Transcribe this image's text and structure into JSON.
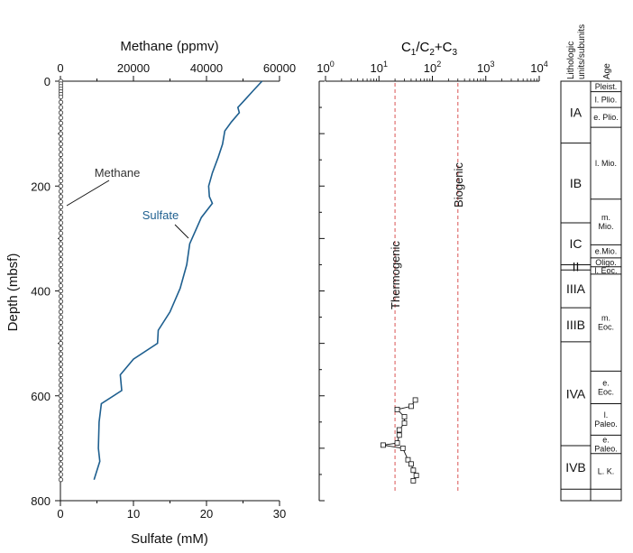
{
  "colors": {
    "sulfate": "#1e5f8f",
    "methane": "#333333",
    "thermogenic_line": "#e07070",
    "biogenic_line": "#e07070",
    "axis": "#111111"
  },
  "chart_data": [
    {
      "type": "line",
      "title": "",
      "ylabel": "Depth (mbsf)",
      "ylim": [
        0,
        800
      ],
      "y_ticks": [
        "0",
        "200",
        "400",
        "600",
        "800"
      ],
      "top_axis": {
        "label": "Methane (ppmv)",
        "range": [
          0,
          60000
        ],
        "ticks": [
          "0",
          "20000",
          "40000",
          "60000"
        ]
      },
      "bottom_axis": {
        "label": "Sulfate (mM)",
        "range": [
          0,
          30
        ],
        "ticks": [
          "0",
          "10",
          "20",
          "30"
        ]
      },
      "annotations": {
        "methane": "Methane",
        "sulfate": "Sulfate"
      },
      "series": [
        {
          "name": "Sulfate",
          "axis": "bottom",
          "points": [
            [
              27.6,
              0
            ],
            [
              26.4,
              18
            ],
            [
              25.3,
              35
            ],
            [
              24.3,
              50
            ],
            [
              24.5,
              60
            ],
            [
              23.4,
              78
            ],
            [
              22.5,
              95
            ],
            [
              22.2,
              120
            ],
            [
              21.6,
              145
            ],
            [
              20.8,
              175
            ],
            [
              20.3,
              200
            ],
            [
              20.4,
              220
            ],
            [
              20.8,
              233
            ],
            [
              19.3,
              260
            ],
            [
              17.7,
              310
            ],
            [
              17.3,
              350
            ],
            [
              16.4,
              395
            ],
            [
              15.0,
              440
            ],
            [
              13.4,
              475
            ],
            [
              13.3,
              500
            ],
            [
              10.0,
              530
            ],
            [
              8.2,
              560
            ],
            [
              8.4,
              590
            ],
            [
              5.6,
              615
            ],
            [
              5.3,
              650
            ],
            [
              5.2,
              700
            ],
            [
              5.4,
              725
            ],
            [
              4.6,
              760
            ]
          ]
        },
        {
          "name": "Methane",
          "axis": "top",
          "depths": [
            0,
            5,
            10,
            15,
            20,
            25,
            30,
            40,
            50,
            60,
            70,
            80,
            90,
            100,
            110,
            120,
            130,
            140,
            150,
            160,
            170,
            180,
            190,
            200,
            210,
            220,
            230,
            240,
            250,
            260,
            270,
            280,
            290,
            300,
            310,
            320,
            330,
            340,
            350,
            360,
            370,
            380,
            390,
            400,
            410,
            420,
            430,
            440,
            450,
            460,
            470,
            480,
            490,
            500,
            510,
            520,
            530,
            540,
            550,
            560,
            570,
            580,
            590,
            600,
            610,
            620,
            630,
            640,
            650,
            660,
            670,
            680,
            690,
            700,
            710,
            720,
            730,
            740,
            750,
            760
          ],
          "value": 0
        }
      ]
    },
    {
      "type": "scatter",
      "title": "C1/C2+C3",
      "xlabel": "",
      "x_scale": "log",
      "xlim": [
        1,
        10000
      ],
      "x_ticks": [
        "10^0",
        "10^1",
        "10^2",
        "10^3",
        "10^4"
      ],
      "ylim": [
        0,
        800
      ],
      "reference_lines": [
        {
          "label": "Thermogenic",
          "x": 20
        },
        {
          "label": "Biogenic",
          "x": 300
        }
      ],
      "points": [
        [
          48,
          608
        ],
        [
          40,
          620
        ],
        [
          22,
          626
        ],
        [
          30,
          640
        ],
        [
          30,
          652
        ],
        [
          24,
          665
        ],
        [
          24,
          675
        ],
        [
          22,
          690
        ],
        [
          12,
          694
        ],
        [
          28,
          700
        ],
        [
          35,
          722
        ],
        [
          40,
          730
        ],
        [
          44,
          742
        ],
        [
          50,
          752
        ],
        [
          44,
          762
        ]
      ]
    }
  ],
  "strat": {
    "header_units": "Lithologic units/subunits",
    "header_units_line1": "Lithologic",
    "header_units_line2": "units/subunits",
    "header_age": "Age",
    "units": [
      {
        "label": "IA",
        "top": 0,
        "bottom": 118
      },
      {
        "label": "IB",
        "top": 118,
        "bottom": 270
      },
      {
        "label": "IC",
        "top": 270,
        "bottom": 350
      },
      {
        "label": "II",
        "top": 350,
        "bottom": 360
      },
      {
        "label": "IIIA",
        "top": 360,
        "bottom": 432
      },
      {
        "label": "IIIB",
        "top": 432,
        "bottom": 497
      },
      {
        "label": "IVA",
        "top": 497,
        "bottom": 695
      },
      {
        "label": "IVB",
        "top": 695,
        "bottom": 778
      }
    ],
    "ages": [
      {
        "label": "Pleist.",
        "top": 0,
        "bottom": 20
      },
      {
        "label": "l. Plio.",
        "top": 20,
        "bottom": 50
      },
      {
        "label": "e. Plio.",
        "top": 50,
        "bottom": 88
      },
      {
        "label": "l. Mio.",
        "top": 88,
        "bottom": 225
      },
      {
        "label": "m.\nMio.",
        "top": 225,
        "bottom": 312
      },
      {
        "label": "e.Mio.",
        "top": 312,
        "bottom": 337
      },
      {
        "label": "Oligo.",
        "top": 337,
        "bottom": 354
      },
      {
        "label": "l. Eoc.",
        "top": 354,
        "bottom": 368
      },
      {
        "label": "m.\nEoc.",
        "top": 368,
        "bottom": 553
      },
      {
        "label": "e.\nEoc.",
        "top": 553,
        "bottom": 615
      },
      {
        "label": "l.\nPaleo.",
        "top": 615,
        "bottom": 675
      },
      {
        "label": "e.\nPaleo.",
        "top": 675,
        "bottom": 710
      },
      {
        "label": "L. K.",
        "top": 710,
        "bottom": 778
      }
    ]
  }
}
